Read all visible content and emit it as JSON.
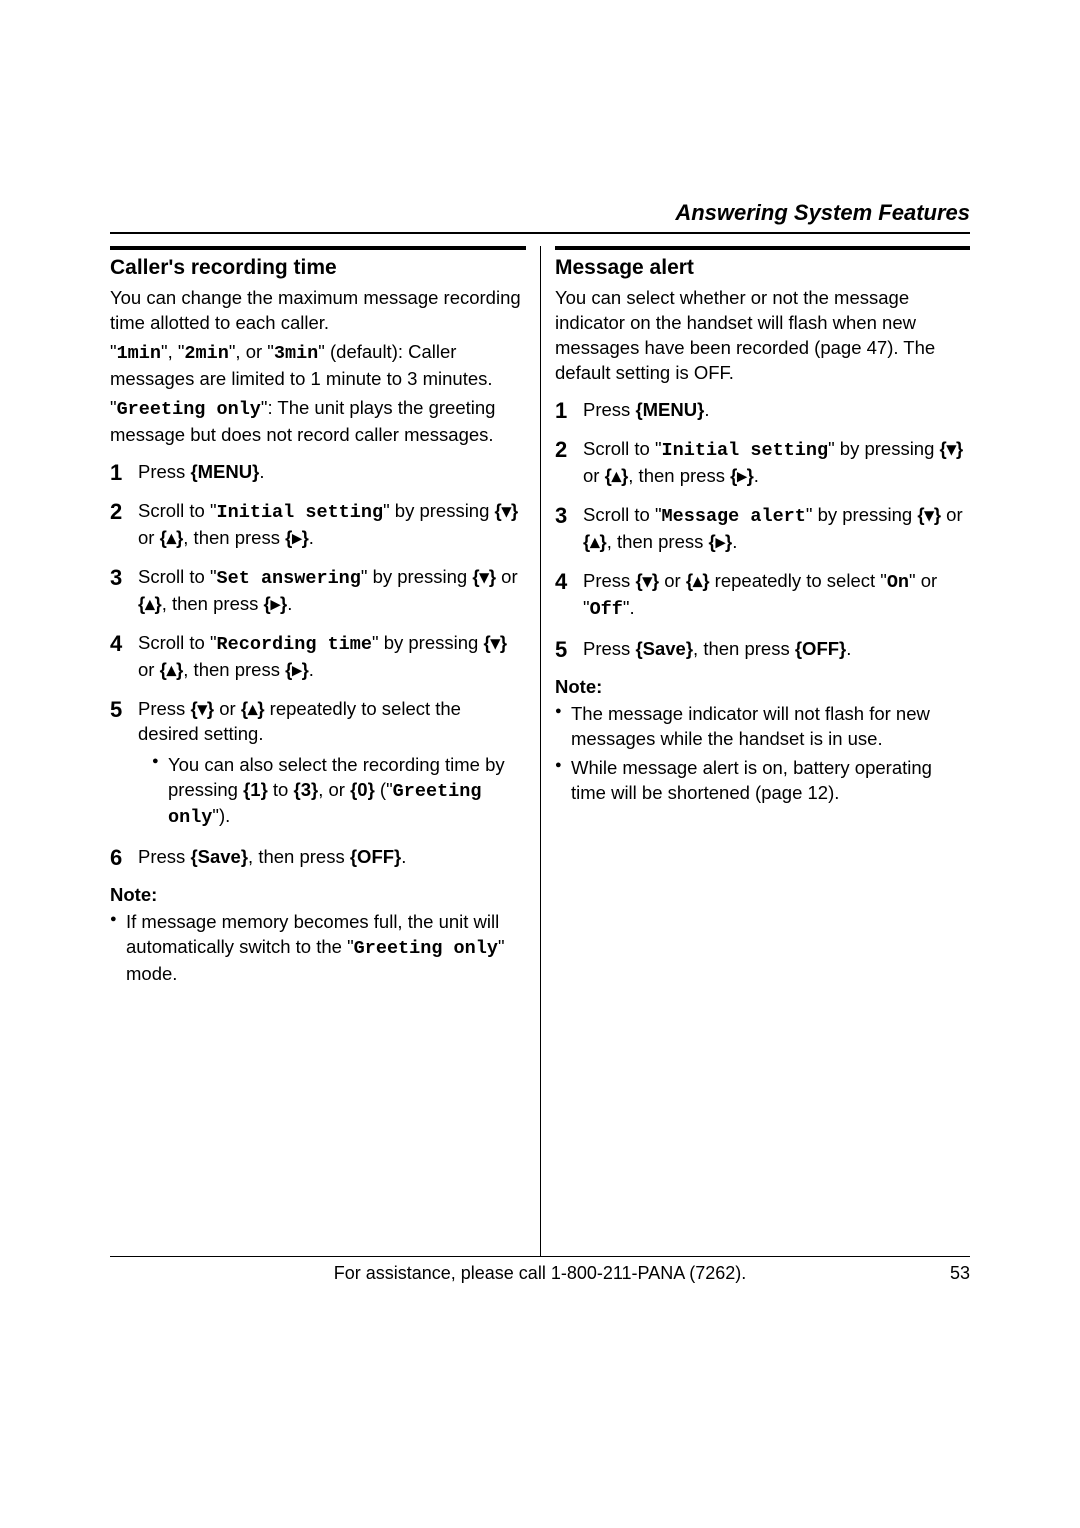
{
  "header": {
    "title": "Answering System Features"
  },
  "left": {
    "heading": "Caller's recording time",
    "intro1a": "You can change the maximum message recording time allotted to each caller.",
    "intro1b_pre": "\"",
    "opt1": "1min",
    "intro1b_mid1": "\", \"",
    "opt2": "2min",
    "intro1b_mid2": "\", or \"",
    "opt3": "3min",
    "intro1b_post": "\" (default): Caller messages are limited to 1 minute to 3 minutes.",
    "intro2_pre": "\"",
    "greet": "Greeting only",
    "intro2_post": "\": The unit plays the greeting message but does not record caller messages.",
    "step1_pre": "Press ",
    "menu": "{MENU}",
    "period": ".",
    "step2_a": "Scroll to \"",
    "step2_mono": "Initial setting",
    "step2_b": "\" by pressing ",
    "down": "{▾}",
    "or": " or ",
    "up": "{▴}",
    "thenpress": ", then press ",
    "right": "{▸}",
    "step3_a": "Scroll to \"",
    "step3_mono": "Set answering",
    "step3_b": "\" by pressing ",
    "step4_a": "Scroll to \"",
    "step4_mono": "Recording time",
    "step4_b": "\" by pressing ",
    "step5_a": "Press ",
    "step5_b": " repeatedly to select the desired setting.",
    "sub5_a": "You can also select the recording time by pressing ",
    "k1": "{1}",
    "to": " to ",
    "k3": "{3}",
    "comma_or": ", or ",
    "k0": "{0}",
    "sub5_b": " (\"",
    "sub5_mono": "Greeting only",
    "sub5_c": "\").",
    "step6_a": "Press ",
    "save": "{Save}",
    "step6_b": ", then press ",
    "off": "{OFF}",
    "note_head": "Note:",
    "note1_a": "If message memory becomes full, the unit will automatically switch to the \"",
    "note1_mono": "Greeting only",
    "note1_b": "\" mode."
  },
  "right": {
    "heading": "Message alert",
    "intro": "You can select whether or not the message indicator on the handset will flash when new messages have been recorded (page 47). The default setting is OFF.",
    "step1_pre": "Press ",
    "menu": "{MENU}",
    "period": ".",
    "step2_a": "Scroll to \"",
    "step2_mono": "Initial setting",
    "step2_b": "\" by pressing ",
    "down": "{▾}",
    "or": " or ",
    "up": "{▴}",
    "thenpress": ", then press ",
    "right": "{▸}",
    "step3_a": "Scroll to \"",
    "step3_mono": "Message alert",
    "step3_b": "\" by pressing ",
    "step4_a": "Press ",
    "step4_b": " repeatedly to select \"",
    "on": "On",
    "step4_c": "\" or \"",
    "offm": "Off",
    "step4_d": "\".",
    "step5_a": "Press ",
    "save": "{Save}",
    "step5_b": ", then press ",
    "off": "{OFF}",
    "note_head": "Note:",
    "note1": "The message indicator will not flash for new messages while the handset is in use.",
    "note2": "While message alert is on, battery operating time will be shortened (page 12)."
  },
  "footer": {
    "text": "For assistance, please call 1-800-211-PANA (7262).",
    "page": "53"
  }
}
